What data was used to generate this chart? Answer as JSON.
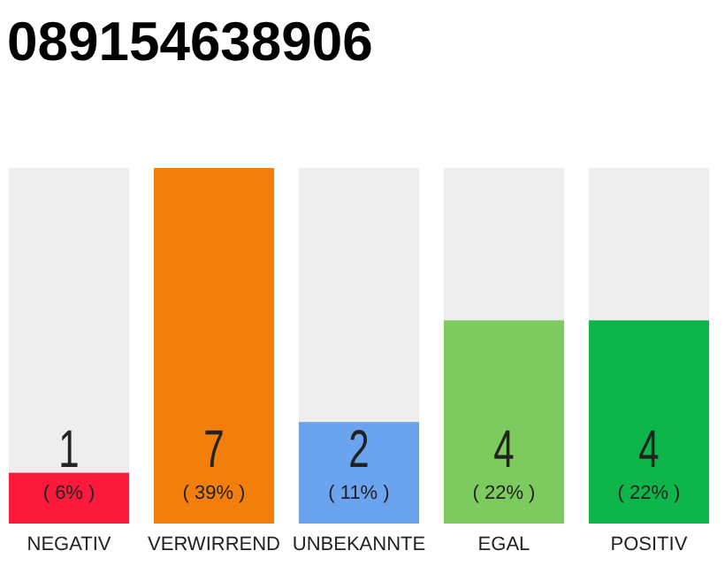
{
  "chart_data": {
    "type": "bar",
    "title": "089154638906",
    "categories": [
      "NEGATIV",
      "VERWIRREND",
      "UNBEKANNTE",
      "EGAL",
      "POSITIV"
    ],
    "values": [
      1,
      7,
      2,
      4,
      4
    ],
    "colors": [
      "#fc1a3c",
      "#f27f0c",
      "#6aa4ee",
      "#7dcb5f",
      "#0db54b"
    ],
    "ylim": [
      0,
      7
    ],
    "tick_labels": "x",
    "data_labels": true,
    "grid": false,
    "annotations": [
      "( 6% )",
      "( 39% )",
      "( 11% )",
      "( 22% )",
      "( 22% )"
    ]
  }
}
